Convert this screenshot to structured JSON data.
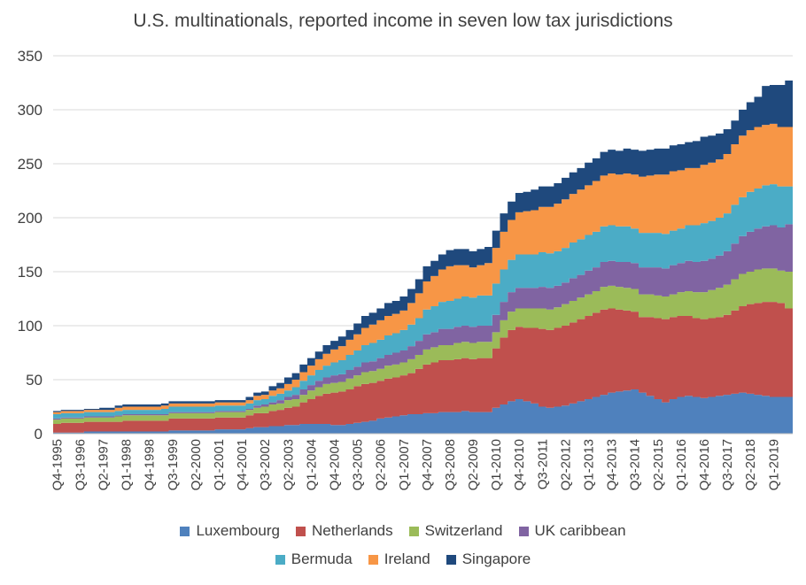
{
  "chart_data": {
    "type": "area",
    "stacked": true,
    "title": "U.S. multinationals, reported income in seven low tax jurisdictions",
    "xlabel": "",
    "ylabel": "",
    "ylim": [
      0,
      350
    ],
    "yticks": [
      0,
      50,
      100,
      150,
      200,
      250,
      300,
      350
    ],
    "grid": "horizontal",
    "legend_position": "bottom",
    "x_tick_labels": [
      "Q4-1995",
      "Q3-1996",
      "Q2-1997",
      "Q1-1998",
      "Q4-1998",
      "Q3-1999",
      "Q2-2000",
      "Q1-2001",
      "Q4-2001",
      "Q3-2002",
      "Q2-2003",
      "Q1-2004",
      "Q4-2004",
      "Q3-2005",
      "Q2-2006",
      "Q1-2007",
      "Q4-2007",
      "Q3-2008",
      "Q2-2009",
      "Q1-2010",
      "Q4-2010",
      "Q3-2011",
      "Q2-2012",
      "Q1-2013",
      "Q4-2013",
      "Q3-2014",
      "Q2-2015",
      "Q1-2016",
      "Q4-2016",
      "Q3-2017",
      "Q2-2018",
      "Q1-2019"
    ],
    "x": [
      "Q4-1995",
      "Q1-1996",
      "Q2-1996",
      "Q3-1996",
      "Q4-1996",
      "Q1-1997",
      "Q2-1997",
      "Q3-1997",
      "Q4-1997",
      "Q1-1998",
      "Q2-1998",
      "Q3-1998",
      "Q4-1998",
      "Q1-1999",
      "Q2-1999",
      "Q3-1999",
      "Q4-1999",
      "Q1-2000",
      "Q2-2000",
      "Q3-2000",
      "Q4-2000",
      "Q1-2001",
      "Q2-2001",
      "Q3-2001",
      "Q4-2001",
      "Q1-2002",
      "Q2-2002",
      "Q3-2002",
      "Q4-2002",
      "Q1-2003",
      "Q2-2003",
      "Q3-2003",
      "Q4-2003",
      "Q1-2004",
      "Q2-2004",
      "Q3-2004",
      "Q4-2004",
      "Q1-2005",
      "Q2-2005",
      "Q3-2005",
      "Q4-2005",
      "Q1-2006",
      "Q2-2006",
      "Q3-2006",
      "Q4-2006",
      "Q1-2007",
      "Q2-2007",
      "Q3-2007",
      "Q4-2007",
      "Q1-2008",
      "Q2-2008",
      "Q3-2008",
      "Q4-2008",
      "Q1-2009",
      "Q2-2009",
      "Q3-2009",
      "Q4-2009",
      "Q1-2010",
      "Q2-2010",
      "Q3-2010",
      "Q4-2010",
      "Q1-2011",
      "Q2-2011",
      "Q3-2011",
      "Q4-2011",
      "Q1-2012",
      "Q2-2012",
      "Q3-2012",
      "Q4-2012",
      "Q1-2013",
      "Q2-2013",
      "Q3-2013",
      "Q4-2013",
      "Q1-2014",
      "Q2-2014",
      "Q3-2014",
      "Q4-2014",
      "Q1-2015",
      "Q2-2015",
      "Q3-2015",
      "Q4-2015",
      "Q1-2016",
      "Q2-2016",
      "Q3-2016",
      "Q4-2016",
      "Q1-2017",
      "Q2-2017",
      "Q3-2017",
      "Q4-2017",
      "Q1-2018",
      "Q2-2018",
      "Q3-2018",
      "Q4-2018",
      "Q1-2019",
      "Q2-2019",
      "Q3-2019"
    ],
    "series": [
      {
        "name": "Luxembourg",
        "color": "#4F81BD",
        "values": [
          1,
          1,
          1,
          1,
          2,
          2,
          2,
          2,
          2,
          2,
          2,
          2,
          2,
          2,
          2,
          3,
          3,
          3,
          3,
          3,
          3,
          4,
          4,
          4,
          4,
          5,
          6,
          6,
          7,
          7,
          8,
          8,
          9,
          9,
          9,
          9,
          8,
          8,
          9,
          10,
          11,
          12,
          14,
          15,
          16,
          17,
          18,
          18,
          19,
          19,
          20,
          20,
          20,
          21,
          20,
          20,
          20,
          24,
          27,
          30,
          32,
          30,
          28,
          25,
          24,
          25,
          26,
          28,
          30,
          32,
          34,
          36,
          38,
          39,
          40,
          41,
          38,
          35,
          32,
          29,
          32,
          34,
          35,
          34,
          33,
          34,
          35,
          36,
          37,
          38,
          37,
          36,
          35,
          34,
          34,
          34
        ]
      },
      {
        "name": "Netherlands",
        "color": "#C0504D",
        "values": [
          8,
          9,
          9,
          9,
          9,
          9,
          9,
          9,
          9,
          10,
          10,
          10,
          10,
          10,
          10,
          11,
          11,
          11,
          11,
          11,
          11,
          11,
          11,
          11,
          11,
          12,
          13,
          13,
          14,
          15,
          16,
          17,
          20,
          23,
          26,
          28,
          30,
          31,
          32,
          34,
          35,
          35,
          35,
          36,
          36,
          37,
          38,
          42,
          45,
          47,
          48,
          48,
          49,
          49,
          49,
          50,
          50,
          55,
          62,
          66,
          67,
          68,
          70,
          72,
          72,
          73,
          74,
          75,
          76,
          77,
          78,
          79,
          78,
          76,
          74,
          72,
          70,
          73,
          75,
          77,
          76,
          75,
          74,
          73,
          73,
          73,
          73,
          74,
          77,
          80,
          83,
          85,
          87,
          88,
          87,
          82
        ]
      },
      {
        "name": "Switzerland",
        "color": "#9BBB59",
        "values": [
          4,
          4,
          4,
          4,
          4,
          4,
          4,
          4,
          5,
          5,
          5,
          5,
          5,
          5,
          5,
          5,
          5,
          5,
          5,
          5,
          5,
          5,
          5,
          5,
          5,
          5,
          5,
          6,
          6,
          6,
          7,
          7,
          7,
          8,
          8,
          9,
          9,
          9,
          10,
          10,
          11,
          11,
          11,
          12,
          12,
          12,
          13,
          13,
          14,
          14,
          14,
          14,
          15,
          15,
          15,
          15,
          15,
          15,
          16,
          17,
          17,
          18,
          18,
          19,
          19,
          19,
          20,
          20,
          20,
          20,
          20,
          21,
          21,
          21,
          21,
          21,
          21,
          21,
          21,
          21,
          21,
          22,
          23,
          24,
          25,
          26,
          27,
          28,
          29,
          30,
          30,
          31,
          31,
          31,
          30,
          34
        ]
      },
      {
        "name": "UK caribbean",
        "color": "#8064A2",
        "values": [
          1,
          1,
          1,
          1,
          1,
          1,
          1,
          1,
          1,
          1,
          1,
          1,
          1,
          1,
          1,
          1,
          1,
          1,
          1,
          1,
          1,
          1,
          1,
          1,
          1,
          1,
          2,
          2,
          2,
          3,
          3,
          4,
          5,
          5,
          6,
          6,
          7,
          7,
          8,
          8,
          9,
          9,
          10,
          10,
          11,
          11,
          12,
          13,
          14,
          14,
          15,
          15,
          15,
          15,
          15,
          15,
          15,
          16,
          17,
          18,
          19,
          19,
          19,
          20,
          20,
          20,
          20,
          21,
          21,
          22,
          22,
          23,
          23,
          23,
          24,
          24,
          25,
          25,
          26,
          26,
          27,
          27,
          28,
          28,
          29,
          29,
          30,
          31,
          33,
          35,
          37,
          38,
          39,
          40,
          40,
          44
        ]
      },
      {
        "name": "Bermuda",
        "color": "#4BACC6",
        "values": [
          4,
          4,
          4,
          4,
          4,
          4,
          4,
          4,
          4,
          4,
          4,
          4,
          4,
          4,
          5,
          5,
          5,
          5,
          5,
          5,
          5,
          5,
          5,
          5,
          5,
          5,
          5,
          5,
          6,
          6,
          6,
          7,
          8,
          9,
          10,
          11,
          12,
          13,
          14,
          15,
          16,
          17,
          17,
          18,
          18,
          19,
          20,
          21,
          23,
          24,
          25,
          26,
          26,
          27,
          27,
          28,
          28,
          29,
          30,
          30,
          31,
          31,
          31,
          32,
          32,
          32,
          32,
          33,
          33,
          33,
          33,
          33,
          33,
          33,
          33,
          32,
          32,
          32,
          32,
          32,
          32,
          32,
          33,
          34,
          35,
          35,
          35,
          35,
          36,
          36,
          37,
          37,
          38,
          38,
          38,
          35
        ]
      },
      {
        "name": "Ireland",
        "color": "#F79646",
        "values": [
          2,
          2,
          2,
          2,
          2,
          2,
          2,
          2,
          3,
          3,
          3,
          3,
          3,
          3,
          3,
          3,
          3,
          3,
          3,
          3,
          3,
          3,
          3,
          3,
          3,
          3,
          4,
          4,
          5,
          5,
          6,
          7,
          8,
          9,
          10,
          11,
          12,
          13,
          14,
          15,
          16,
          17,
          18,
          18,
          18,
          18,
          20,
          23,
          26,
          28,
          30,
          32,
          31,
          29,
          28,
          28,
          30,
          33,
          35,
          37,
          39,
          40,
          41,
          42,
          43,
          44,
          45,
          45,
          46,
          46,
          47,
          47,
          48,
          48,
          49,
          50,
          52,
          53,
          54,
          55,
          55,
          54,
          53,
          53,
          54,
          54,
          54,
          55,
          56,
          57,
          57,
          57,
          56,
          56,
          55,
          55
        ]
      },
      {
        "name": "Singapore",
        "color": "#1F497D",
        "values": [
          1,
          1,
          1,
          1,
          1,
          1,
          2,
          2,
          2,
          2,
          2,
          2,
          2,
          2,
          2,
          2,
          2,
          2,
          2,
          2,
          2,
          2,
          2,
          2,
          2,
          3,
          3,
          3,
          4,
          5,
          6,
          6,
          7,
          7,
          7,
          8,
          8,
          9,
          9,
          10,
          11,
          11,
          11,
          12,
          12,
          13,
          13,
          13,
          14,
          14,
          14,
          15,
          15,
          15,
          15,
          15,
          15,
          16,
          17,
          17,
          18,
          18,
          19,
          19,
          19,
          19,
          20,
          20,
          20,
          21,
          21,
          22,
          22,
          22,
          23,
          23,
          24,
          24,
          24,
          24,
          24,
          24,
          24,
          25,
          26,
          25,
          24,
          23,
          22,
          24,
          26,
          28,
          36,
          36,
          39,
          43
        ]
      }
    ]
  }
}
